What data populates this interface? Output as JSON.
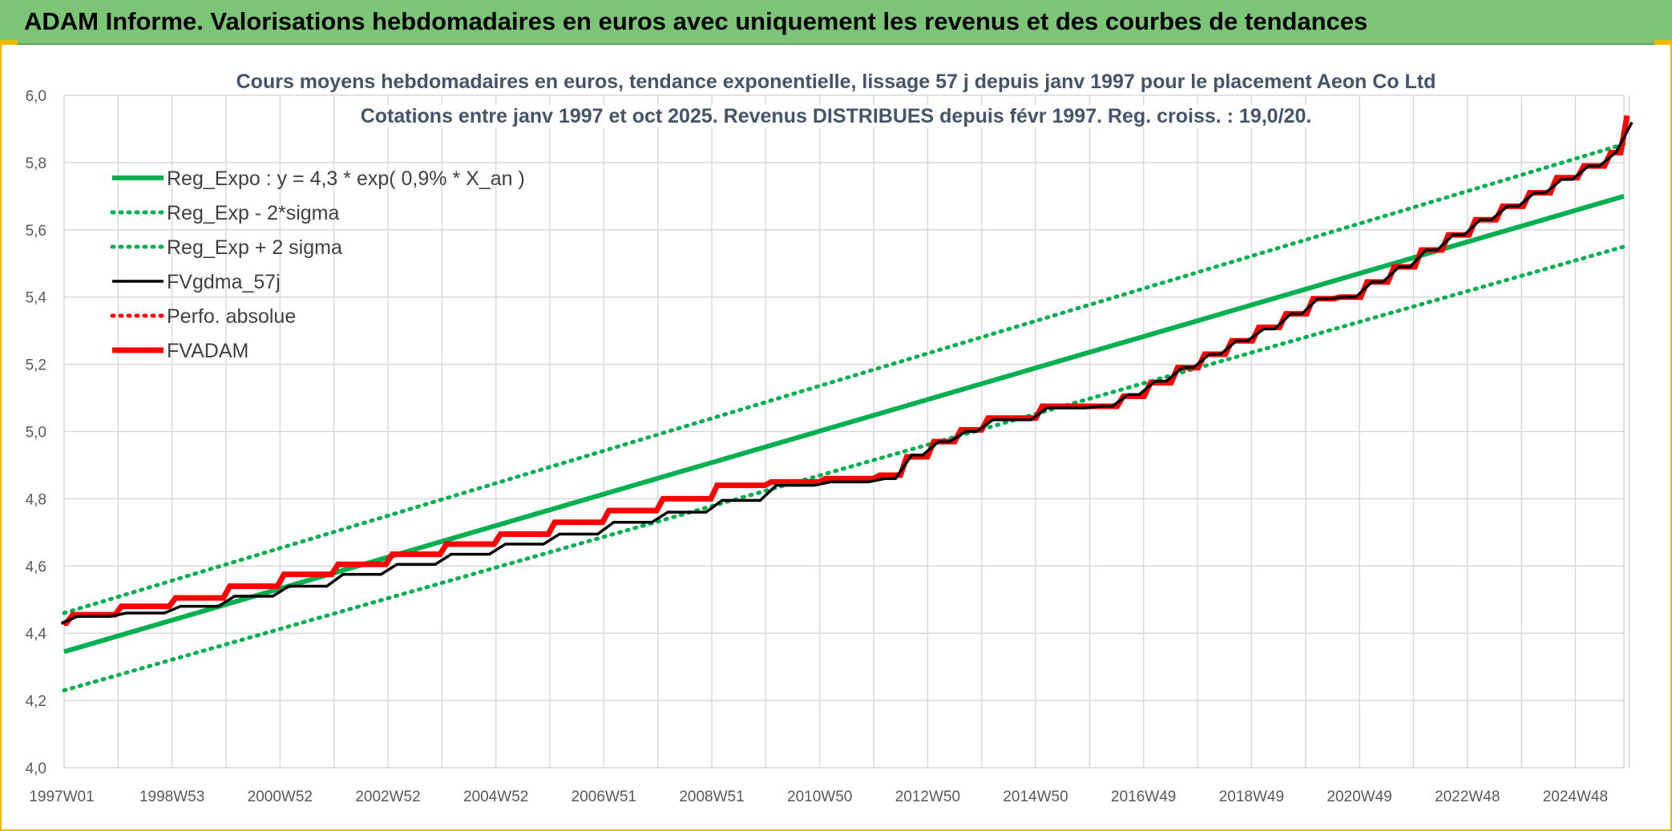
{
  "banner": {
    "title": "ADAM Informe. Valorisations hebdomadaires en euros avec uniquement les revenus et des courbes de tendances"
  },
  "colors": {
    "banner": "#7cc576",
    "frame": "#f2b705",
    "trend": "#00b050",
    "smoothed": "#000000",
    "fvadam": "#ff0000",
    "grid": "#d9d9d9"
  },
  "chart_data": {
    "type": "line",
    "title_line1": "Cours moyens hebdomadaires en euros, tendance exponentielle, lissage 57 j depuis janv 1997 pour le placement Aeon Co Ltd",
    "title_line2": "Cotations entre janv 1997 et oct 2025. Revenus DISTRIBUES depuis févr 1997. Reg. croiss. : 19,0/20.",
    "xlabel": "",
    "ylabel": "",
    "ylim": [
      4.0,
      6.0
    ],
    "y_ticks": [
      "4,0",
      "4,2",
      "4,4",
      "4,6",
      "4,8",
      "5,0",
      "5,2",
      "5,4",
      "5,6",
      "5,8",
      "6,0"
    ],
    "x_range": [
      1997.0,
      2025.8
    ],
    "x_tick_labels": [
      "1997W01",
      "1998W53",
      "2000W52",
      "2002W52",
      "2004W52",
      "2006W51",
      "2008W51",
      "2010W50",
      "2012W50",
      "2014W50",
      "2016W49",
      "2018W49",
      "2020W49",
      "2022W48",
      "2024W48"
    ],
    "grid": true,
    "legend_position": "top-left",
    "series": [
      {
        "name": "Reg_Expo : y = 4,3 * exp( 0,9% *  X_an )",
        "style": "solid",
        "color": "#00b050",
        "x": [
          1997.0,
          2025.8
        ],
        "y": [
          4.345,
          5.7
        ]
      },
      {
        "name": "Reg_Exp - 2*sigma",
        "style": "dotted",
        "color": "#00b050",
        "x": [
          1997.0,
          2025.8
        ],
        "y": [
          4.23,
          5.55
        ]
      },
      {
        "name": "Reg_Exp + 2 sigma",
        "style": "dotted",
        "color": "#00b050",
        "x": [
          1997.0,
          2025.8
        ],
        "y": [
          4.46,
          5.855
        ]
      },
      {
        "name": "FVgdma_57j",
        "style": "solid",
        "color": "#000000",
        "x": [
          1997.0,
          1997.1,
          1998.0,
          1999.0,
          2000.0,
          2001.0,
          2002.0,
          2003.0,
          2004.0,
          2005.0,
          2006.0,
          2007.0,
          2008.0,
          2009.0,
          2010.0,
          2011.0,
          2012.0,
          2012.5,
          2013.0,
          2013.5,
          2014.0,
          2015.0,
          2016.0,
          2016.5,
          2017.0,
          2017.5,
          2018.0,
          2018.5,
          2019.0,
          2019.5,
          2020.0,
          2020.5,
          2021.0,
          2021.5,
          2022.0,
          2022.5,
          2023.0,
          2023.5,
          2024.0,
          2024.5,
          2025.0,
          2025.5,
          2025.8
        ],
        "y": [
          4.43,
          4.45,
          4.46,
          4.48,
          4.51,
          4.54,
          4.575,
          4.605,
          4.635,
          4.665,
          4.695,
          4.73,
          4.76,
          4.795,
          4.84,
          4.85,
          4.86,
          4.93,
          4.97,
          5.0,
          5.035,
          5.07,
          5.075,
          5.11,
          5.15,
          5.19,
          5.23,
          5.27,
          5.305,
          5.35,
          5.395,
          5.4,
          5.445,
          5.49,
          5.54,
          5.585,
          5.63,
          5.67,
          5.71,
          5.75,
          5.79,
          5.83,
          5.92
        ]
      },
      {
        "name": "Perfo. absolue",
        "style": "dotted",
        "color": "#ff0000",
        "x": [],
        "y": []
      },
      {
        "name": "FVADAM",
        "style": "step",
        "color": "#ff0000",
        "x": [
          1997.0,
          1997.1,
          1998.0,
          1999.0,
          2000.0,
          2001.0,
          2002.0,
          2003.0,
          2004.0,
          2005.0,
          2006.0,
          2007.0,
          2008.0,
          2009.0,
          2010.0,
          2011.0,
          2012.0,
          2012.5,
          2013.0,
          2013.5,
          2014.0,
          2015.0,
          2016.0,
          2016.5,
          2017.0,
          2017.5,
          2018.0,
          2018.5,
          2019.0,
          2019.5,
          2020.0,
          2020.5,
          2021.0,
          2021.5,
          2022.0,
          2022.5,
          2023.0,
          2023.5,
          2024.0,
          2024.5,
          2025.0,
          2025.5,
          2025.8
        ],
        "y": [
          4.43,
          4.455,
          4.48,
          4.505,
          4.54,
          4.575,
          4.605,
          4.635,
          4.665,
          4.695,
          4.73,
          4.765,
          4.8,
          4.84,
          4.85,
          4.86,
          4.87,
          4.925,
          4.97,
          5.005,
          5.04,
          5.075,
          5.075,
          5.105,
          5.145,
          5.19,
          5.23,
          5.27,
          5.31,
          5.35,
          5.395,
          5.4,
          5.445,
          5.49,
          5.54,
          5.585,
          5.63,
          5.67,
          5.71,
          5.755,
          5.79,
          5.83,
          5.94
        ]
      }
    ]
  }
}
